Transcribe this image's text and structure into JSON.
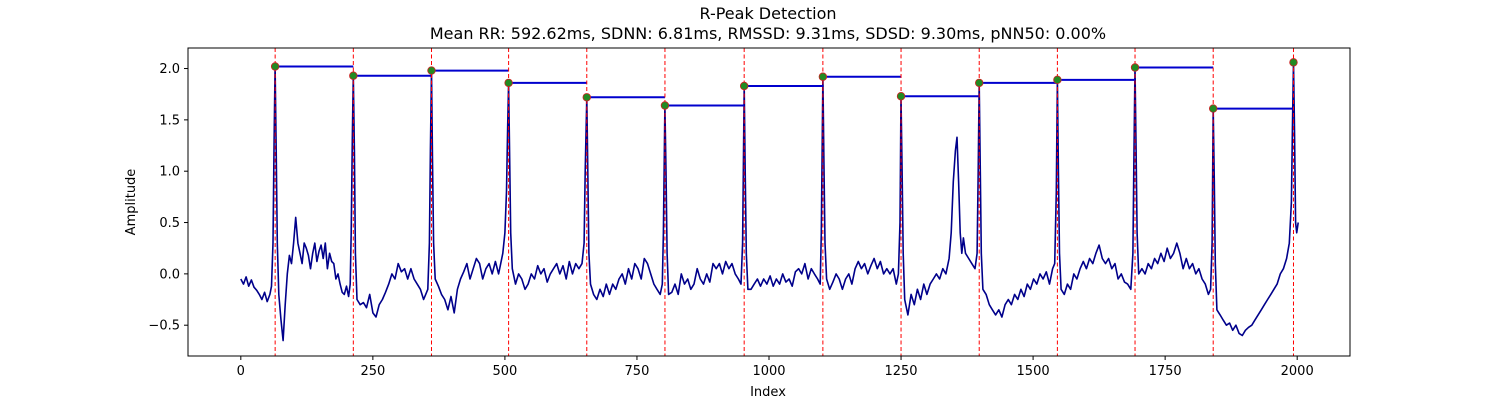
{
  "chart_data": {
    "type": "line",
    "title": "R-Peak Detection",
    "subtitle": "Mean RR: 592.62ms, SDNN: 6.81ms, RMSSD: 9.31ms, SDSD: 9.30ms, pNN50: 0.00%",
    "xlabel": "Index",
    "ylabel": "Amplitude",
    "xlim": [
      -100,
      2100
    ],
    "ylim": [
      -0.8,
      2.2
    ],
    "xticks": [
      0,
      250,
      500,
      750,
      1000,
      1250,
      1500,
      1750,
      2000
    ],
    "yticks": [
      -0.5,
      0.0,
      0.5,
      1.0,
      1.5,
      2.0
    ],
    "xtick_labels": [
      "0",
      "250",
      "500",
      "750",
      "1000",
      "1250",
      "1500",
      "1750",
      "2000"
    ],
    "ytick_labels": [
      "−0.5",
      "0.0",
      "0.5",
      "1.0",
      "1.5",
      "2.0"
    ],
    "grid": false,
    "colors": {
      "signal": "#00008b",
      "peak_marker": "#228b22",
      "peak_marker_edge": "#cc2222",
      "peak_line": "#ff0000",
      "rr_segment": "#0000cd"
    },
    "r_peaks": [
      {
        "x": 65,
        "y": 2.02
      },
      {
        "x": 213,
        "y": 1.93
      },
      {
        "x": 361,
        "y": 1.98
      },
      {
        "x": 507,
        "y": 1.86
      },
      {
        "x": 655,
        "y": 1.72
      },
      {
        "x": 803,
        "y": 1.64
      },
      {
        "x": 953,
        "y": 1.83
      },
      {
        "x": 1102,
        "y": 1.92
      },
      {
        "x": 1250,
        "y": 1.73
      },
      {
        "x": 1398,
        "y": 1.86
      },
      {
        "x": 1546,
        "y": 1.89
      },
      {
        "x": 1693,
        "y": 2.01
      },
      {
        "x": 1841,
        "y": 1.61
      },
      {
        "x": 1993,
        "y": 2.06
      }
    ],
    "signal_points": [
      [
        0,
        -0.05
      ],
      [
        5,
        -0.1
      ],
      [
        10,
        -0.03
      ],
      [
        15,
        -0.12
      ],
      [
        20,
        -0.06
      ],
      [
        25,
        -0.13
      ],
      [
        30,
        -0.16
      ],
      [
        35,
        -0.2
      ],
      [
        40,
        -0.25
      ],
      [
        45,
        -0.18
      ],
      [
        50,
        -0.27
      ],
      [
        55,
        -0.2
      ],
      [
        58,
        -0.12
      ],
      [
        61,
        0.3
      ],
      [
        63,
        1.3
      ],
      [
        65,
        2.02
      ],
      [
        67,
        1.2
      ],
      [
        69,
        0.3
      ],
      [
        72,
        -0.2
      ],
      [
        76,
        -0.45
      ],
      [
        80,
        -0.65
      ],
      [
        84,
        -0.3
      ],
      [
        88,
        0.0
      ],
      [
        92,
        0.18
      ],
      [
        96,
        0.1
      ],
      [
        100,
        0.3
      ],
      [
        104,
        0.55
      ],
      [
        108,
        0.3
      ],
      [
        112,
        0.2
      ],
      [
        116,
        0.1
      ],
      [
        120,
        0.3
      ],
      [
        124,
        0.25
      ],
      [
        128,
        0.18
      ],
      [
        132,
        0.05
      ],
      [
        136,
        0.2
      ],
      [
        140,
        0.3
      ],
      [
        144,
        0.12
      ],
      [
        148,
        0.22
      ],
      [
        152,
        0.28
      ],
      [
        156,
        0.15
      ],
      [
        160,
        0.3
      ],
      [
        164,
        0.05
      ],
      [
        168,
        0.2
      ],
      [
        172,
        0.12
      ],
      [
        176,
        0.1
      ],
      [
        180,
        -0.05
      ],
      [
        184,
        0.0
      ],
      [
        188,
        -0.1
      ],
      [
        192,
        -0.18
      ],
      [
        196,
        -0.2
      ],
      [
        200,
        -0.12
      ],
      [
        204,
        -0.22
      ],
      [
        207,
        -0.1
      ],
      [
        209,
        0.4
      ],
      [
        211,
        1.3
      ],
      [
        213,
        1.93
      ],
      [
        215,
        1.2
      ],
      [
        217,
        0.2
      ],
      [
        220,
        -0.25
      ],
      [
        226,
        -0.3
      ],
      [
        232,
        -0.28
      ],
      [
        238,
        -0.33
      ],
      [
        244,
        -0.2
      ],
      [
        250,
        -0.38
      ],
      [
        256,
        -0.42
      ],
      [
        262,
        -0.3
      ],
      [
        268,
        -0.25
      ],
      [
        274,
        -0.18
      ],
      [
        280,
        -0.1
      ],
      [
        286,
        0.0
      ],
      [
        292,
        -0.05
      ],
      [
        298,
        0.1
      ],
      [
        304,
        0.02
      ],
      [
        310,
        0.05
      ],
      [
        316,
        -0.05
      ],
      [
        322,
        0.05
      ],
      [
        328,
        -0.05
      ],
      [
        334,
        -0.1
      ],
      [
        340,
        -0.15
      ],
      [
        346,
        -0.25
      ],
      [
        350,
        -0.2
      ],
      [
        354,
        -0.15
      ],
      [
        357,
        0.3
      ],
      [
        359,
        1.2
      ],
      [
        361,
        1.98
      ],
      [
        363,
        1.1
      ],
      [
        365,
        0.3
      ],
      [
        368,
        -0.05
      ],
      [
        374,
        -0.12
      ],
      [
        380,
        -0.2
      ],
      [
        386,
        -0.25
      ],
      [
        392,
        -0.35
      ],
      [
        398,
        -0.22
      ],
      [
        404,
        -0.38
      ],
      [
        410,
        -0.15
      ],
      [
        416,
        -0.05
      ],
      [
        422,
        0.02
      ],
      [
        428,
        0.1
      ],
      [
        434,
        -0.05
      ],
      [
        440,
        0.05
      ],
      [
        446,
        0.15
      ],
      [
        452,
        0.1
      ],
      [
        458,
        -0.05
      ],
      [
        464,
        0.05
      ],
      [
        470,
        0.1
      ],
      [
        476,
        0.0
      ],
      [
        482,
        0.12
      ],
      [
        488,
        0.0
      ],
      [
        492,
        0.1
      ],
      [
        496,
        0.2
      ],
      [
        500,
        0.4
      ],
      [
        503,
        0.8
      ],
      [
        505,
        1.4
      ],
      [
        507,
        1.86
      ],
      [
        509,
        1.1
      ],
      [
        511,
        0.4
      ],
      [
        514,
        0.05
      ],
      [
        520,
        -0.1
      ],
      [
        526,
        0.0
      ],
      [
        532,
        -0.05
      ],
      [
        538,
        -0.15
      ],
      [
        544,
        -0.1
      ],
      [
        550,
        0.0
      ],
      [
        556,
        -0.05
      ],
      [
        562,
        0.08
      ],
      [
        568,
        0.0
      ],
      [
        574,
        0.05
      ],
      [
        580,
        -0.08
      ],
      [
        586,
        0.0
      ],
      [
        592,
        0.05
      ],
      [
        598,
        0.1
      ],
      [
        604,
        0.0
      ],
      [
        610,
        0.08
      ],
      [
        616,
        -0.05
      ],
      [
        622,
        0.12
      ],
      [
        628,
        0.0
      ],
      [
        634,
        0.1
      ],
      [
        640,
        0.05
      ],
      [
        646,
        0.1
      ],
      [
        650,
        0.3
      ],
      [
        652,
        1.0
      ],
      [
        655,
        1.72
      ],
      [
        657,
        1.0
      ],
      [
        659,
        0.2
      ],
      [
        662,
        -0.1
      ],
      [
        668,
        -0.2
      ],
      [
        674,
        -0.25
      ],
      [
        680,
        -0.15
      ],
      [
        686,
        -0.22
      ],
      [
        692,
        -0.1
      ],
      [
        698,
        -0.2
      ],
      [
        704,
        -0.1
      ],
      [
        710,
        -0.15
      ],
      [
        716,
        -0.05
      ],
      [
        722,
        0.0
      ],
      [
        728,
        -0.1
      ],
      [
        734,
        0.05
      ],
      [
        740,
        -0.05
      ],
      [
        746,
        0.1
      ],
      [
        752,
        0.05
      ],
      [
        758,
        -0.05
      ],
      [
        764,
        0.15
      ],
      [
        770,
        0.1
      ],
      [
        776,
        0.0
      ],
      [
        782,
        -0.1
      ],
      [
        788,
        -0.15
      ],
      [
        794,
        -0.2
      ],
      [
        798,
        -0.1
      ],
      [
        800,
        0.4
      ],
      [
        803,
        1.64
      ],
      [
        805,
        1.0
      ],
      [
        807,
        0.2
      ],
      [
        810,
        -0.2
      ],
      [
        816,
        -0.18
      ],
      [
        822,
        -0.1
      ],
      [
        828,
        -0.2
      ],
      [
        834,
        0.0
      ],
      [
        840,
        -0.1
      ],
      [
        846,
        -0.05
      ],
      [
        852,
        -0.15
      ],
      [
        858,
        -0.1
      ],
      [
        864,
        0.05
      ],
      [
        870,
        -0.05
      ],
      [
        876,
        -0.1
      ],
      [
        882,
        0.0
      ],
      [
        888,
        -0.08
      ],
      [
        894,
        0.1
      ],
      [
        900,
        0.05
      ],
      [
        906,
        0.1
      ],
      [
        912,
        0.0
      ],
      [
        918,
        0.12
      ],
      [
        924,
        0.05
      ],
      [
        930,
        0.1
      ],
      [
        936,
        0.0
      ],
      [
        942,
        -0.05
      ],
      [
        947,
        -0.1
      ],
      [
        950,
        0.3
      ],
      [
        953,
        1.83
      ],
      [
        955,
        1.0
      ],
      [
        957,
        0.2
      ],
      [
        960,
        -0.15
      ],
      [
        966,
        -0.15
      ],
      [
        972,
        -0.1
      ],
      [
        978,
        -0.05
      ],
      [
        984,
        -0.12
      ],
      [
        990,
        -0.05
      ],
      [
        996,
        -0.1
      ],
      [
        1002,
        -0.02
      ],
      [
        1008,
        -0.12
      ],
      [
        1014,
        -0.05
      ],
      [
        1020,
        -0.1
      ],
      [
        1026,
        0.0
      ],
      [
        1032,
        -0.08
      ],
      [
        1038,
        -0.05
      ],
      [
        1044,
        -0.12
      ],
      [
        1050,
        0.02
      ],
      [
        1056,
        0.05
      ],
      [
        1062,
        0.0
      ],
      [
        1068,
        0.1
      ],
      [
        1074,
        -0.05
      ],
      [
        1080,
        0.05
      ],
      [
        1086,
        0.0
      ],
      [
        1092,
        -0.05
      ],
      [
        1097,
        -0.1
      ],
      [
        1099,
        0.4
      ],
      [
        1102,
        1.92
      ],
      [
        1104,
        1.1
      ],
      [
        1106,
        0.3
      ],
      [
        1109,
        -0.05
      ],
      [
        1115,
        -0.15
      ],
      [
        1121,
        -0.08
      ],
      [
        1127,
        0.0
      ],
      [
        1133,
        -0.05
      ],
      [
        1139,
        -0.15
      ],
      [
        1145,
        -0.05
      ],
      [
        1151,
        0.0
      ],
      [
        1157,
        -0.1
      ],
      [
        1163,
        0.05
      ],
      [
        1169,
        0.12
      ],
      [
        1175,
        0.05
      ],
      [
        1181,
        0.1
      ],
      [
        1187,
        0.0
      ],
      [
        1193,
        0.08
      ],
      [
        1199,
        0.15
      ],
      [
        1205,
        0.05
      ],
      [
        1211,
        0.12
      ],
      [
        1217,
        0.0
      ],
      [
        1223,
        0.05
      ],
      [
        1229,
        0.0
      ],
      [
        1235,
        0.05
      ],
      [
        1241,
        -0.1
      ],
      [
        1245,
        0.0
      ],
      [
        1248,
        0.5
      ],
      [
        1250,
        1.73
      ],
      [
        1252,
        1.0
      ],
      [
        1254,
        0.2
      ],
      [
        1257,
        -0.25
      ],
      [
        1263,
        -0.4
      ],
      [
        1269,
        -0.2
      ],
      [
        1275,
        -0.3
      ],
      [
        1281,
        -0.15
      ],
      [
        1287,
        -0.25
      ],
      [
        1293,
        -0.1
      ],
      [
        1299,
        -0.2
      ],
      [
        1305,
        -0.1
      ],
      [
        1311,
        -0.05
      ],
      [
        1317,
        0.0
      ],
      [
        1323,
        -0.05
      ],
      [
        1329,
        0.05
      ],
      [
        1335,
        0.0
      ],
      [
        1341,
        0.15
      ],
      [
        1345,
        0.4
      ],
      [
        1349,
        0.9
      ],
      [
        1353,
        1.2
      ],
      [
        1356,
        1.33
      ],
      [
        1359,
        0.9
      ],
      [
        1362,
        0.4
      ],
      [
        1365,
        0.2
      ],
      [
        1368,
        0.35
      ],
      [
        1372,
        0.2
      ],
      [
        1378,
        0.15
      ],
      [
        1384,
        0.1
      ],
      [
        1390,
        0.05
      ],
      [
        1394,
        0.2
      ],
      [
        1396,
        1.0
      ],
      [
        1398,
        1.86
      ],
      [
        1400,
        1.0
      ],
      [
        1402,
        0.2
      ],
      [
        1405,
        -0.15
      ],
      [
        1411,
        -0.2
      ],
      [
        1417,
        -0.3
      ],
      [
        1423,
        -0.35
      ],
      [
        1429,
        -0.4
      ],
      [
        1435,
        -0.35
      ],
      [
        1441,
        -0.42
      ],
      [
        1447,
        -0.3
      ],
      [
        1453,
        -0.25
      ],
      [
        1459,
        -0.3
      ],
      [
        1465,
        -0.2
      ],
      [
        1471,
        -0.25
      ],
      [
        1477,
        -0.15
      ],
      [
        1483,
        -0.22
      ],
      [
        1489,
        -0.1
      ],
      [
        1495,
        -0.15
      ],
      [
        1501,
        -0.05
      ],
      [
        1507,
        -0.1
      ],
      [
        1513,
        0.0
      ],
      [
        1519,
        -0.05
      ],
      [
        1525,
        0.02
      ],
      [
        1531,
        -0.1
      ],
      [
        1537,
        0.05
      ],
      [
        1541,
        0.1
      ],
      [
        1544,
        0.8
      ],
      [
        1546,
        1.89
      ],
      [
        1548,
        1.0
      ],
      [
        1550,
        0.2
      ],
      [
        1553,
        -0.15
      ],
      [
        1559,
        -0.2
      ],
      [
        1565,
        -0.1
      ],
      [
        1571,
        -0.15
      ],
      [
        1577,
        0.0
      ],
      [
        1583,
        -0.05
      ],
      [
        1589,
        0.05
      ],
      [
        1595,
        0.12
      ],
      [
        1601,
        0.05
      ],
      [
        1607,
        0.15
      ],
      [
        1613,
        0.1
      ],
      [
        1619,
        0.2
      ],
      [
        1625,
        0.28
      ],
      [
        1631,
        0.15
      ],
      [
        1637,
        0.1
      ],
      [
        1643,
        0.15
      ],
      [
        1649,
        0.05
      ],
      [
        1655,
        0.1
      ],
      [
        1661,
        -0.05
      ],
      [
        1667,
        0.0
      ],
      [
        1673,
        -0.08
      ],
      [
        1679,
        -0.1
      ],
      [
        1685,
        -0.15
      ],
      [
        1689,
        0.2
      ],
      [
        1691,
        1.2
      ],
      [
        1693,
        2.01
      ],
      [
        1695,
        1.2
      ],
      [
        1697,
        0.4
      ],
      [
        1700,
        0.0
      ],
      [
        1706,
        0.05
      ],
      [
        1712,
        0.0
      ],
      [
        1718,
        0.1
      ],
      [
        1724,
        0.05
      ],
      [
        1730,
        0.15
      ],
      [
        1736,
        0.1
      ],
      [
        1742,
        0.2
      ],
      [
        1748,
        0.12
      ],
      [
        1754,
        0.25
      ],
      [
        1760,
        0.15
      ],
      [
        1766,
        0.2
      ],
      [
        1772,
        0.3
      ],
      [
        1778,
        0.2
      ],
      [
        1784,
        0.05
      ],
      [
        1790,
        0.15
      ],
      [
        1796,
        0.05
      ],
      [
        1802,
        0.1
      ],
      [
        1808,
        0.0
      ],
      [
        1814,
        0.05
      ],
      [
        1820,
        -0.05
      ],
      [
        1826,
        -0.1
      ],
      [
        1832,
        -0.2
      ],
      [
        1836,
        -0.15
      ],
      [
        1839,
        0.3
      ],
      [
        1841,
        1.61
      ],
      [
        1843,
        0.9
      ],
      [
        1845,
        0.1
      ],
      [
        1848,
        -0.35
      ],
      [
        1854,
        -0.4
      ],
      [
        1860,
        -0.45
      ],
      [
        1866,
        -0.5
      ],
      [
        1872,
        -0.48
      ],
      [
        1878,
        -0.55
      ],
      [
        1884,
        -0.5
      ],
      [
        1890,
        -0.58
      ],
      [
        1896,
        -0.6
      ],
      [
        1902,
        -0.55
      ],
      [
        1908,
        -0.52
      ],
      [
        1914,
        -0.5
      ],
      [
        1920,
        -0.45
      ],
      [
        1926,
        -0.4
      ],
      [
        1932,
        -0.35
      ],
      [
        1938,
        -0.3
      ],
      [
        1944,
        -0.25
      ],
      [
        1950,
        -0.2
      ],
      [
        1956,
        -0.15
      ],
      [
        1962,
        -0.1
      ],
      [
        1968,
        0.0
      ],
      [
        1974,
        0.05
      ],
      [
        1980,
        0.15
      ],
      [
        1985,
        0.3
      ],
      [
        1989,
        0.7
      ],
      [
        1991,
        1.4
      ],
      [
        1993,
        2.06
      ],
      [
        1995,
        1.4
      ],
      [
        1997,
        0.5
      ],
      [
        1999,
        0.4
      ],
      [
        2002,
        0.5
      ]
    ]
  }
}
